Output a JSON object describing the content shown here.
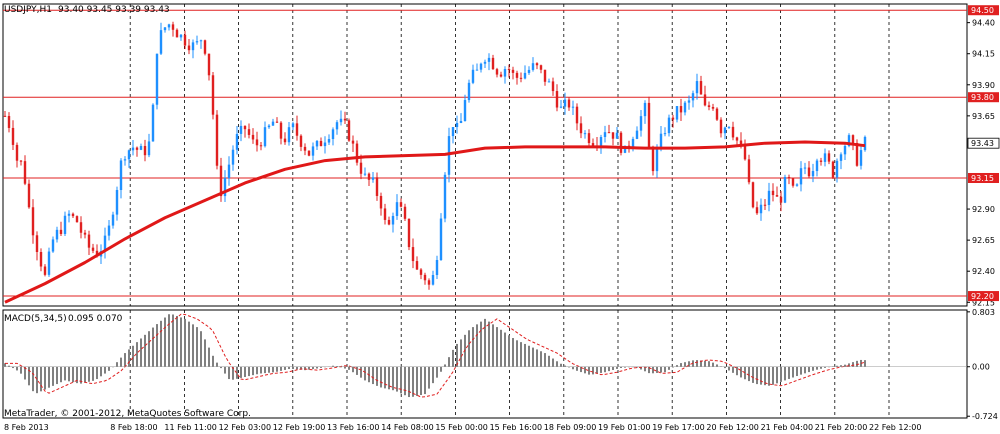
{
  "header": {
    "symbol": "USDJPY,H1",
    "quote": "93.40 93.45 93.39 93.43"
  },
  "indicator": {
    "label": "MACD(5,34,5)",
    "values": "0.095 0.070"
  },
  "copyright": "MetaTrader, © 2001-2012, MetaQuotes Software Corp.",
  "colors": {
    "bull": "#1e90ff",
    "bear": "#e02020",
    "ma": "#e01818",
    "level": "#e02020",
    "macd_bar": "#808080",
    "signal": "#e02020",
    "grid": "#000000",
    "axis_text": "#000000"
  },
  "chart_data": [
    {
      "type": "candlestick",
      "title": "USDJPY,H1",
      "ylim": [
        92.12,
        94.55
      ],
      "price_ticks": [
        "94.40",
        "94.15",
        "93.90",
        "93.65",
        "92.90",
        "92.65",
        "92.40",
        "92.15"
      ],
      "x_ticks": [
        "8 Feb 2013",
        "8 Feb 18:00",
        "11 Feb 11:00",
        "12 Feb 03:00",
        "12 Feb 19:00",
        "13 Feb 16:00",
        "14 Feb 08:00",
        "15 Feb 00:00",
        "15 Feb 16:00",
        "18 Feb 09:00",
        "19 Feb 01:00",
        "19 Feb 17:00",
        "20 Feb 12:00",
        "21 Feb 04:00",
        "21 Feb 20:00",
        "22 Feb 12:00"
      ],
      "levels": [
        {
          "value": 94.5,
          "label": "94.50"
        },
        {
          "value": 93.8,
          "label": "93.80"
        },
        {
          "value": 93.15,
          "label": "93.15"
        },
        {
          "value": 92.2,
          "label": "92.20"
        }
      ],
      "current_price": {
        "value": 93.43,
        "label": "93.43"
      },
      "price_path": [
        [
          0,
          93.65
        ],
        [
          6,
          93.55
        ],
        [
          12,
          93.3
        ],
        [
          18,
          93.25
        ],
        [
          25,
          92.85
        ],
        [
          32,
          92.6
        ],
        [
          40,
          92.35
        ],
        [
          48,
          92.65
        ],
        [
          56,
          92.75
        ],
        [
          64,
          92.85
        ],
        [
          72,
          92.8
        ],
        [
          82,
          92.6
        ],
        [
          92,
          92.55
        ],
        [
          102,
          92.65
        ],
        [
          110,
          93.0
        ],
        [
          118,
          93.35
        ],
        [
          128,
          93.4
        ],
        [
          138,
          93.35
        ],
        [
          146,
          93.45
        ],
        [
          152,
          94.2
        ],
        [
          158,
          94.35
        ],
        [
          166,
          94.4
        ],
        [
          174,
          94.3
        ],
        [
          182,
          94.25
        ],
        [
          190,
          94.2
        ],
        [
          198,
          94.3
        ],
        [
          206,
          93.9
        ],
        [
          212,
          93.2
        ],
        [
          216,
          93.05
        ],
        [
          222,
          93.2
        ],
        [
          230,
          93.45
        ],
        [
          240,
          93.55
        ],
        [
          250,
          93.4
        ],
        [
          260,
          93.5
        ],
        [
          268,
          93.6
        ],
        [
          278,
          93.45
        ],
        [
          288,
          93.55
        ],
        [
          296,
          93.45
        ],
        [
          304,
          93.35
        ],
        [
          312,
          93.4
        ],
        [
          322,
          93.5
        ],
        [
          332,
          93.6
        ],
        [
          342,
          93.55
        ],
        [
          352,
          93.3
        ],
        [
          360,
          93.15
        ],
        [
          368,
          93.1
        ],
        [
          376,
          92.95
        ],
        [
          382,
          92.7
        ],
        [
          390,
          92.95
        ],
        [
          398,
          92.85
        ],
        [
          406,
          92.55
        ],
        [
          412,
          92.4
        ],
        [
          420,
          92.35
        ],
        [
          426,
          92.25
        ],
        [
          432,
          92.55
        ],
        [
          438,
          93.05
        ],
        [
          442,
          93.4
        ],
        [
          448,
          93.6
        ],
        [
          454,
          93.5
        ],
        [
          460,
          93.8
        ],
        [
          466,
          93.95
        ],
        [
          472,
          94.0
        ],
        [
          478,
          94.15
        ],
        [
          486,
          94.1
        ],
        [
          494,
          94.0
        ],
        [
          502,
          94.05
        ],
        [
          510,
          93.95
        ],
        [
          520,
          94.0
        ],
        [
          530,
          94.05
        ],
        [
          540,
          93.95
        ],
        [
          548,
          93.85
        ],
        [
          556,
          93.7
        ],
        [
          564,
          93.75
        ],
        [
          572,
          93.6
        ],
        [
          580,
          93.5
        ],
        [
          590,
          93.45
        ],
        [
          600,
          93.55
        ],
        [
          610,
          93.5
        ],
        [
          620,
          93.35
        ],
        [
          630,
          93.55
        ],
        [
          640,
          93.7
        ],
        [
          646,
          93.2
        ],
        [
          652,
          93.35
        ],
        [
          660,
          93.55
        ],
        [
          668,
          93.65
        ],
        [
          676,
          93.7
        ],
        [
          684,
          93.75
        ],
        [
          692,
          93.9
        ],
        [
          700,
          93.7
        ],
        [
          708,
          93.75
        ],
        [
          716,
          93.55
        ],
        [
          724,
          93.6
        ],
        [
          732,
          93.45
        ],
        [
          740,
          93.3
        ],
        [
          746,
          92.95
        ],
        [
          752,
          92.85
        ],
        [
          760,
          92.95
        ],
        [
          766,
          93.05
        ],
        [
          774,
          92.95
        ],
        [
          782,
          93.15
        ],
        [
          790,
          93.0
        ],
        [
          798,
          93.25
        ],
        [
          806,
          93.2
        ],
        [
          812,
          93.35
        ],
        [
          820,
          93.3
        ],
        [
          828,
          93.2
        ],
        [
          836,
          93.4
        ],
        [
          844,
          93.45
        ],
        [
          852,
          93.3
        ],
        [
          860,
          93.43
        ]
      ],
      "ma_path": [
        [
          0,
          92.15
        ],
        [
          40,
          92.3
        ],
        [
          80,
          92.47
        ],
        [
          120,
          92.66
        ],
        [
          160,
          92.83
        ],
        [
          200,
          92.97
        ],
        [
          240,
          93.11
        ],
        [
          280,
          93.22
        ],
        [
          320,
          93.29
        ],
        [
          360,
          93.32
        ],
        [
          400,
          93.33
        ],
        [
          440,
          93.34
        ],
        [
          480,
          93.39
        ],
        [
          520,
          93.4
        ],
        [
          560,
          93.4
        ],
        [
          600,
          93.4
        ],
        [
          640,
          93.39
        ],
        [
          680,
          93.39
        ],
        [
          720,
          93.4
        ],
        [
          760,
          93.43
        ],
        [
          800,
          93.44
        ],
        [
          840,
          93.43
        ],
        [
          860,
          93.41
        ]
      ]
    },
    {
      "type": "bar",
      "title": "MACD(5,34,5)",
      "ylim": [
        -0.75,
        0.83
      ],
      "y_ticks": [
        "0.803",
        "0.00",
        "-0.724"
      ],
      "macd_path": [
        [
          0,
          0.05
        ],
        [
          15,
          -0.08
        ],
        [
          30,
          -0.4
        ],
        [
          45,
          -0.3
        ],
        [
          60,
          -0.2
        ],
        [
          75,
          -0.25
        ],
        [
          90,
          -0.2
        ],
        [
          105,
          -0.05
        ],
        [
          120,
          0.2
        ],
        [
          135,
          0.4
        ],
        [
          150,
          0.6
        ],
        [
          165,
          0.78
        ],
        [
          180,
          0.7
        ],
        [
          195,
          0.55
        ],
        [
          210,
          0.1
        ],
        [
          225,
          -0.2
        ],
        [
          240,
          -0.15
        ],
        [
          255,
          -0.1
        ],
        [
          270,
          -0.08
        ],
        [
          285,
          -0.03
        ],
        [
          300,
          -0.05
        ],
        [
          315,
          -0.02
        ],
        [
          330,
          0.02
        ],
        [
          345,
          -0.05
        ],
        [
          360,
          -0.2
        ],
        [
          375,
          -0.3
        ],
        [
          390,
          -0.35
        ],
        [
          405,
          -0.45
        ],
        [
          420,
          -0.4
        ],
        [
          435,
          -0.1
        ],
        [
          450,
          0.3
        ],
        [
          465,
          0.55
        ],
        [
          480,
          0.7
        ],
        [
          495,
          0.55
        ],
        [
          510,
          0.4
        ],
        [
          525,
          0.3
        ],
        [
          540,
          0.2
        ],
        [
          555,
          0.05
        ],
        [
          570,
          -0.05
        ],
        [
          585,
          -0.12
        ],
        [
          600,
          -0.08
        ],
        [
          615,
          -0.02
        ],
        [
          630,
          0.0
        ],
        [
          645,
          -0.1
        ],
        [
          660,
          -0.08
        ],
        [
          675,
          0.05
        ],
        [
          690,
          0.1
        ],
        [
          705,
          0.08
        ],
        [
          720,
          -0.02
        ],
        [
          735,
          -0.15
        ],
        [
          750,
          -0.25
        ],
        [
          765,
          -0.28
        ],
        [
          780,
          -0.2
        ],
        [
          795,
          -0.12
        ],
        [
          810,
          -0.05
        ],
        [
          825,
          0.0
        ],
        [
          840,
          0.03
        ],
        [
          855,
          0.1
        ],
        [
          862,
          0.095
        ]
      ]
    }
  ]
}
